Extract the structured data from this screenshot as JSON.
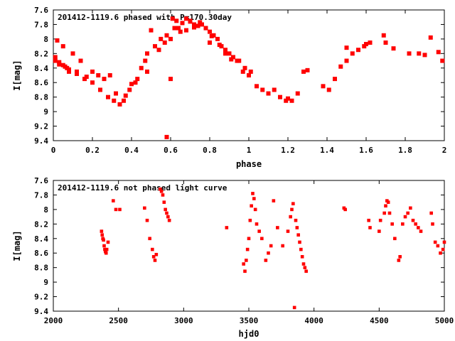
{
  "chart_data": [
    {
      "type": "scatter",
      "title": "201412-1119.6 phased with P=170.30day",
      "xlabel": "phase",
      "ylabel": "I[mag]",
      "xlim": [
        0,
        2
      ],
      "ylim": [
        7.6,
        9.4
      ],
      "y_inverted": true,
      "grid": false,
      "legend": "none",
      "marker_color": "#ff0000",
      "xticks": [
        "0",
        "0.2",
        "0.4",
        "0.6",
        "0.8",
        "1",
        "1.2",
        "1.4",
        "1.6",
        "1.8",
        "2"
      ],
      "yticks": [
        "7.6",
        "7.8",
        "8",
        "8.2",
        "8.4",
        "8.6",
        "8.8",
        "9",
        "9.2",
        "9.4"
      ],
      "series": [
        {
          "x": [
            0.01,
            0.02,
            0.03,
            0.05,
            0.06,
            0.07,
            0.08,
            0.1,
            0.12,
            0.14,
            0.17,
            0.2,
            0.23,
            0.26,
            0.29,
            0.32,
            0.36,
            0.39,
            0.42,
            0.45,
            0.48,
            0.52,
            0.55,
            0.58,
            0.61,
            0.63,
            0.64,
            0.66,
            0.68,
            0.7,
            0.72,
            0.74,
            0.76,
            0.78,
            0.8,
            0.82,
            0.84,
            0.86,
            0.88,
            0.9,
            0.92,
            0.95,
            0.98,
            1.01,
            1.04,
            1.07,
            1.1,
            1.13,
            1.16,
            1.19,
            1.22,
            1.25,
            1.28,
            1.38,
            1.41,
            1.44,
            1.47,
            1.5,
            1.53,
            1.56,
            1.59,
            1.62,
            1.69,
            1.74,
            1.82,
            1.87,
            1.93,
            1.97,
            1.99,
            0.01,
            0.03,
            0.05,
            0.08,
            0.12,
            0.16,
            0.2,
            0.24,
            0.28,
            0.31,
            0.34,
            0.37,
            0.4,
            0.43,
            0.47,
            0.5,
            0.54,
            0.57,
            0.6,
            0.62,
            0.65,
            0.68,
            0.7,
            0.72,
            0.75,
            0.78,
            0.81,
            0.85,
            0.88,
            0.91,
            0.94,
            0.97,
            1.0,
            1.2,
            1.3,
            1.5,
            1.6,
            1.7,
            1.9,
            0.58,
            0.48,
            0.8,
            0.6
          ],
          "y": [
            8.3,
            8.02,
            8.35,
            8.1,
            8.38,
            8.4,
            8.45,
            8.2,
            8.48,
            8.3,
            8.52,
            8.45,
            8.5,
            8.55,
            8.5,
            8.75,
            8.85,
            8.7,
            8.6,
            8.4,
            8.2,
            8.1,
            8.0,
            7.95,
            7.72,
            7.75,
            7.85,
            7.78,
            7.72,
            7.75,
            7.8,
            7.82,
            7.8,
            7.85,
            7.9,
            7.95,
            8.0,
            8.1,
            8.15,
            8.2,
            8.25,
            8.3,
            8.4,
            8.45,
            8.65,
            8.7,
            8.75,
            8.7,
            8.8,
            8.85,
            8.85,
            8.75,
            8.45,
            8.65,
            8.7,
            8.55,
            8.38,
            8.3,
            8.2,
            8.15,
            8.1,
            8.05,
            7.95,
            8.13,
            8.2,
            8.2,
            7.98,
            8.18,
            8.3,
            8.25,
            8.32,
            8.36,
            8.42,
            8.45,
            8.55,
            8.6,
            8.7,
            8.8,
            8.85,
            8.9,
            8.78,
            8.62,
            8.55,
            8.3,
            7.88,
            8.15,
            8.05,
            8.0,
            7.85,
            7.9,
            7.88,
            7.76,
            7.84,
            7.77,
            7.85,
            7.96,
            8.08,
            8.2,
            8.28,
            8.3,
            8.45,
            8.5,
            8.82,
            8.43,
            8.12,
            8.07,
            8.05,
            8.22,
            9.35,
            8.45,
            8.05,
            8.55
          ]
        }
      ]
    },
    {
      "type": "scatter",
      "title": "201412-1119.6 not phased light curve",
      "xlabel": "hjd0",
      "ylabel": "I[mag]",
      "xlim": [
        2000,
        5000
      ],
      "ylim": [
        7.6,
        9.4
      ],
      "y_inverted": true,
      "grid": false,
      "legend": "none",
      "marker_color": "#ff0000",
      "xticks": [
        "2000",
        "2500",
        "3000",
        "3500",
        "4000",
        "4500",
        "5000"
      ],
      "yticks": [
        "7.6",
        "7.8",
        "8",
        "8.2",
        "8.4",
        "8.6",
        "8.8",
        "9",
        "9.2",
        "9.4"
      ],
      "series": [
        {
          "x": [
            2370,
            2375,
            2380,
            2385,
            2390,
            2395,
            2400,
            2405,
            2410,
            2420,
            2460,
            2480,
            2510,
            2700,
            2720,
            2740,
            2760,
            2770,
            2780,
            2790,
            2820,
            2830,
            2840,
            2850,
            2860,
            2870,
            2880,
            2890,
            3330,
            3460,
            3470,
            3480,
            3490,
            3500,
            3510,
            3520,
            3530,
            3540,
            3550,
            3560,
            3580,
            3600,
            3630,
            3650,
            3670,
            3690,
            3720,
            3760,
            3800,
            3820,
            3830,
            3840,
            3850,
            3860,
            3870,
            3880,
            3890,
            3900,
            3910,
            3920,
            3930,
            3940,
            4230,
            4240,
            4420,
            4430,
            4500,
            4510,
            4540,
            4550,
            4560,
            4570,
            4580,
            4600,
            4620,
            4650,
            4660,
            4680,
            4700,
            4720,
            4740,
            4760,
            4780,
            4800,
            4820,
            4900,
            4910,
            4930,
            4950,
            4970,
            4990,
            5000
          ],
          "y": [
            8.3,
            8.35,
            8.4,
            8.42,
            8.5,
            8.55,
            8.58,
            8.6,
            8.55,
            8.45,
            7.88,
            8.0,
            8.0,
            7.98,
            8.15,
            8.4,
            8.55,
            8.65,
            8.7,
            8.62,
            7.72,
            7.75,
            7.8,
            7.9,
            8.0,
            8.05,
            8.1,
            8.15,
            8.25,
            8.75,
            8.85,
            8.7,
            8.55,
            8.4,
            8.15,
            7.95,
            7.78,
            7.85,
            8.0,
            8.2,
            8.3,
            8.4,
            8.7,
            8.6,
            8.5,
            7.88,
            8.25,
            8.5,
            8.3,
            8.1,
            8.0,
            7.92,
            9.35,
            8.15,
            8.25,
            8.35,
            8.45,
            8.55,
            8.65,
            8.75,
            8.8,
            8.85,
            7.98,
            8.0,
            8.15,
            8.25,
            8.3,
            8.15,
            8.05,
            7.95,
            7.88,
            7.9,
            8.05,
            8.2,
            8.4,
            8.7,
            8.65,
            8.2,
            8.1,
            8.05,
            7.98,
            8.15,
            8.2,
            8.25,
            8.3,
            8.05,
            8.2,
            8.45,
            8.5,
            8.6,
            8.55,
            8.45
          ]
        }
      ]
    }
  ]
}
